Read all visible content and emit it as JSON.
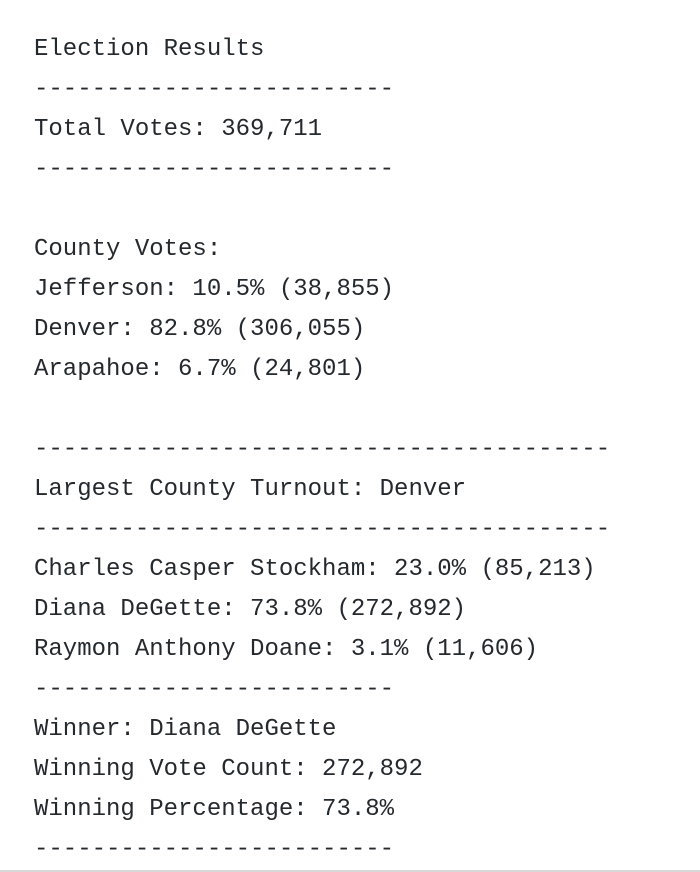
{
  "report": {
    "title": "Election Results",
    "rule_short": "-------------------------",
    "rule_long": "----------------------------------------",
    "total_votes": "Total Votes: 369,711",
    "county_votes": {
      "heading": "County Votes:",
      "rows": [
        "Jefferson: 10.5% (38,855)",
        "Denver: 82.8% (306,055)",
        "Arapahoe: 6.7% (24,801)"
      ]
    },
    "largest_county_turnout": "Largest County Turnout: Denver",
    "candidates": [
      "Charles Casper Stockham: 23.0% (85,213)",
      "Diana DeGette: 73.8% (272,892)",
      "Raymon Anthony Doane: 3.1% (11,606)"
    ],
    "winner": "Winner: Diana DeGette",
    "winning_vote_count": "Winning Vote Count: 272,892",
    "winning_percentage": "Winning Percentage: 73.8%"
  }
}
